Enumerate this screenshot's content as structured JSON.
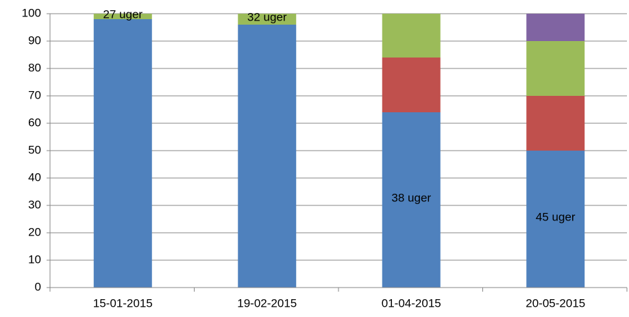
{
  "chart_data": {
    "type": "stacked_bar",
    "categories": [
      "15-01-2015",
      "19-02-2015",
      "01-04-2015",
      "20-05-2015"
    ],
    "series": [
      {
        "color": "#4f81bd",
        "values": [
          98,
          96,
          64,
          50
        ]
      },
      {
        "color": "#c0504d",
        "values": [
          0,
          0,
          20,
          20
        ]
      },
      {
        "color": "#9bbb59",
        "values": [
          2,
          4,
          16,
          20
        ]
      },
      {
        "color": "#8064a2",
        "values": [
          0,
          0,
          0,
          10
        ]
      }
    ],
    "bar_labels": [
      "27 uger",
      "32 uger",
      "38 uger",
      "45 uger"
    ],
    "ylim": [
      0,
      100
    ],
    "yticks": [
      0,
      10,
      20,
      30,
      40,
      50,
      60,
      70,
      80,
      90,
      100
    ],
    "grid": true
  }
}
